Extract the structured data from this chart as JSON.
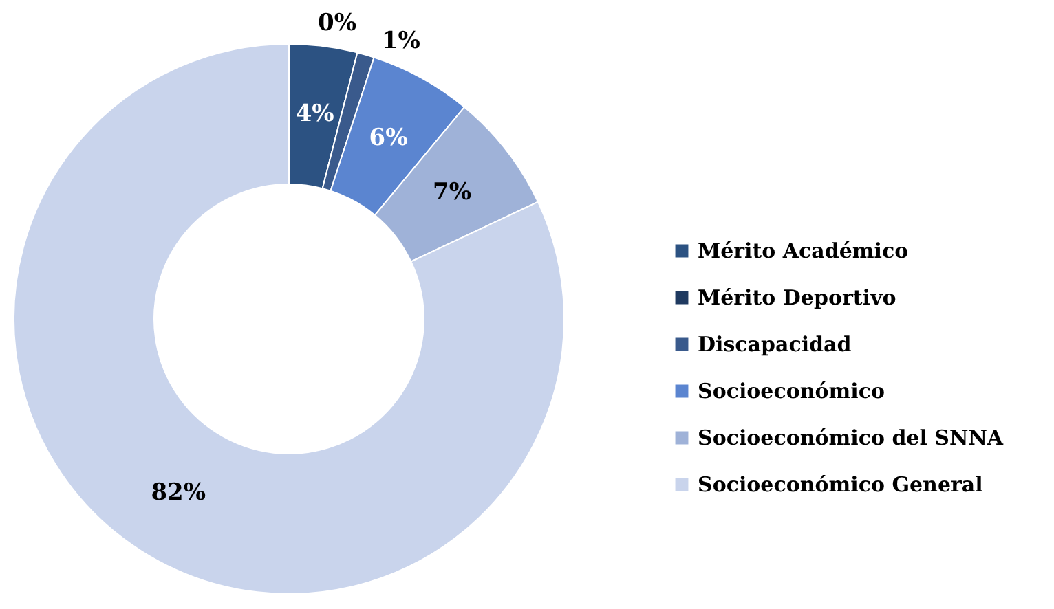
{
  "chart_data": {
    "type": "donut",
    "categories": [
      "Mérito Académico",
      "Mérito Deportivo",
      "Discapacidad",
      "Socioeconómico",
      "Socioeconómico del SNNA",
      "Socioeconómico General"
    ],
    "values": [
      4,
      0,
      1,
      6,
      7,
      82
    ],
    "colors": [
      "#2c5282",
      "#1f3a60",
      "#3a5a8c",
      "#5b85d0",
      "#9fb2d8",
      "#c9d4ec"
    ],
    "value_labels": [
      "4%",
      "0%",
      "1%",
      "6%",
      "7%",
      "82%"
    ],
    "legend": "right"
  }
}
